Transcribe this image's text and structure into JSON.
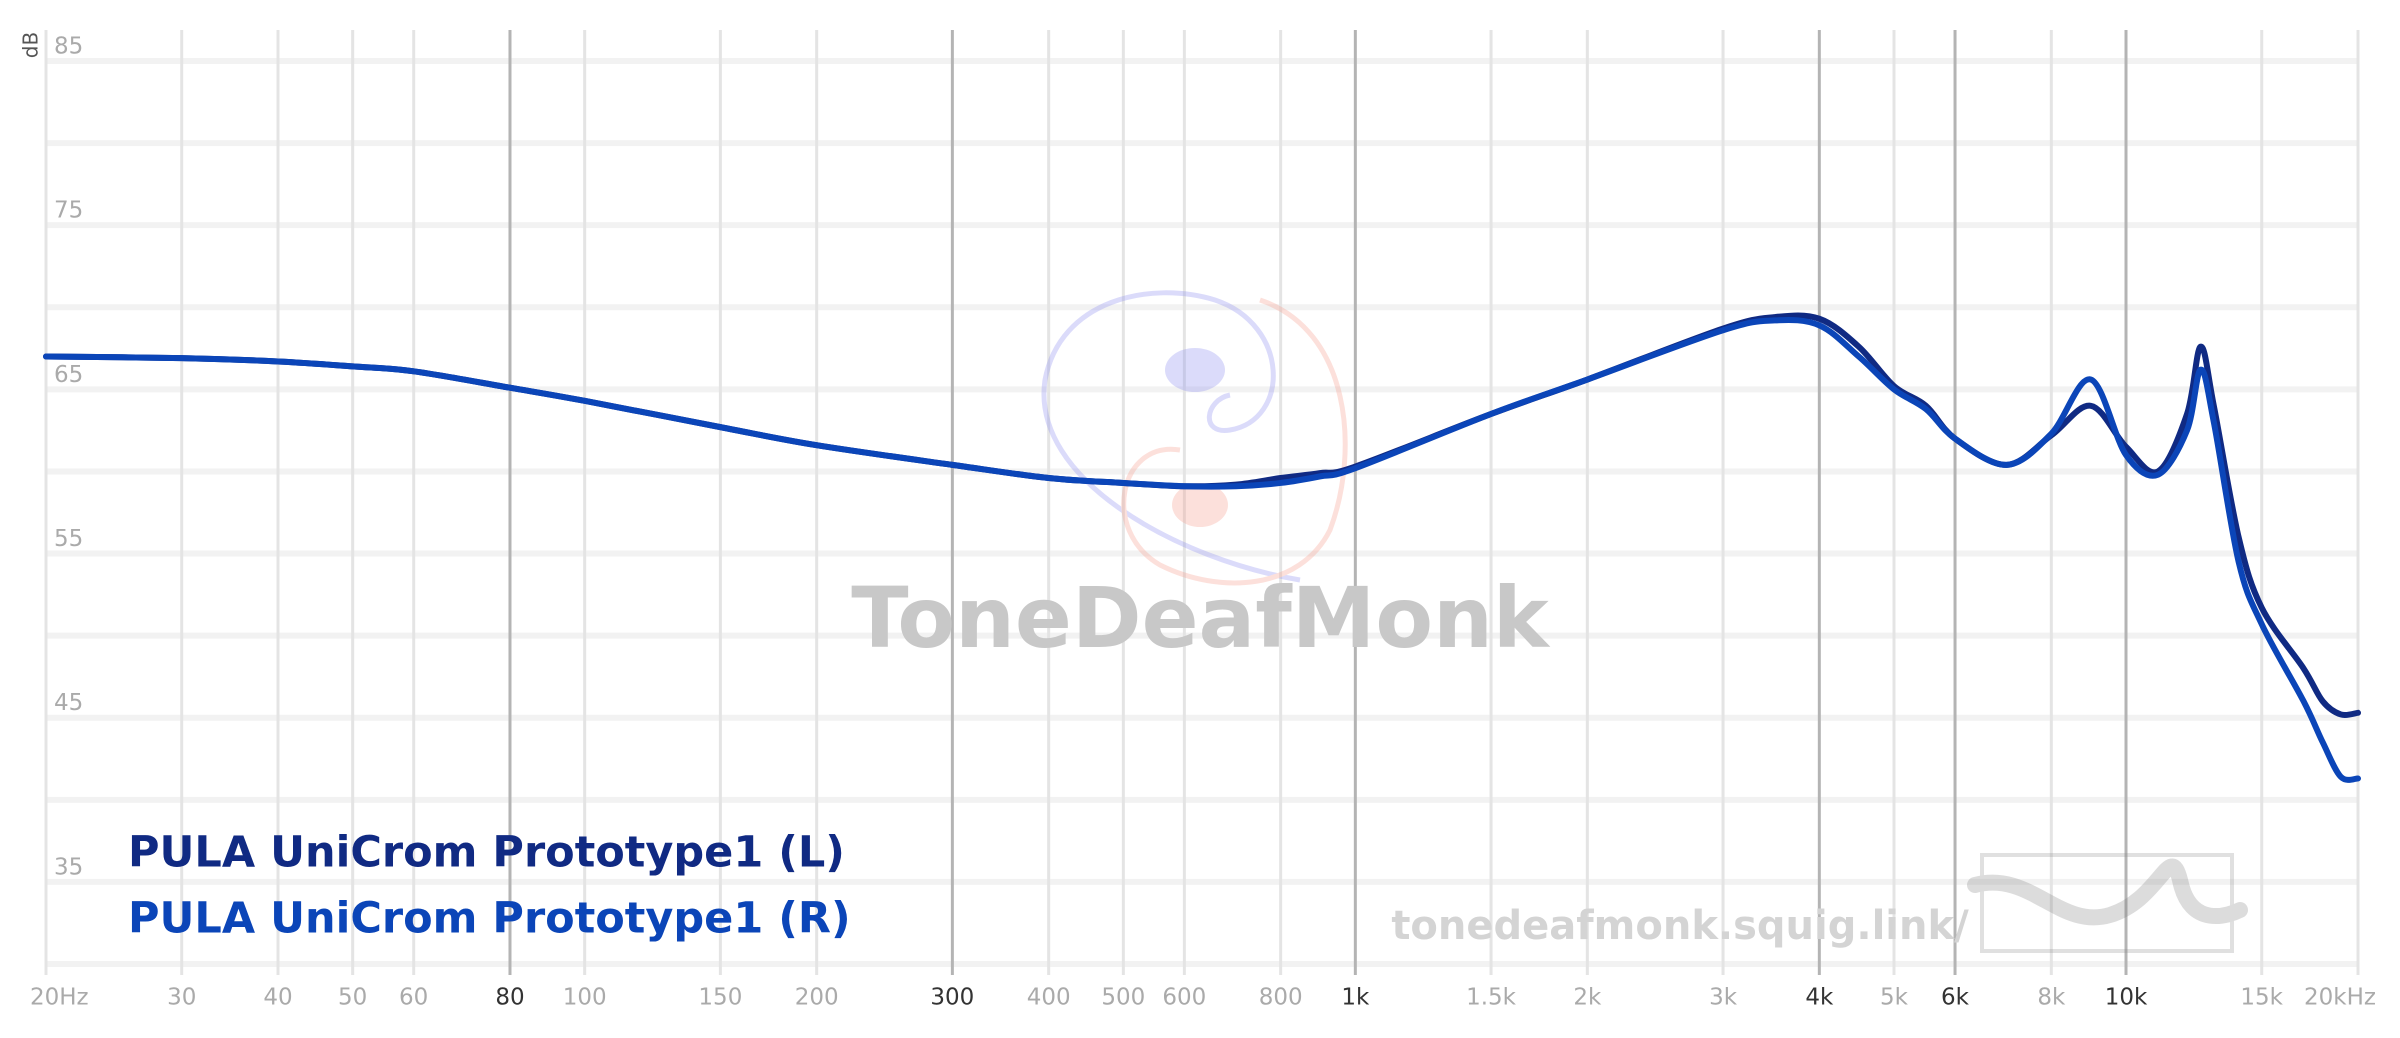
{
  "chart_data": {
    "type": "line",
    "ylabel": "dB",
    "watermark": "ToneDeafMonk",
    "url": "tonedeafmonk.squig.link/",
    "log_x": true,
    "grid": true,
    "legend": "bottom-left",
    "xlim": [
      20,
      20000
    ],
    "ylim": [
      30,
      85
    ],
    "yticks": [
      35,
      45,
      55,
      65,
      75,
      85
    ],
    "ygrid": [
      30,
      40,
      50,
      60,
      70,
      80
    ],
    "xticks": [
      {
        "value": 20,
        "label": "20Hz"
      },
      30,
      40,
      50,
      60,
      80,
      100,
      150,
      200,
      300,
      400,
      500,
      600,
      800,
      {
        "value": 1000,
        "label": "1k"
      },
      {
        "value": 1500,
        "label": "1.5k"
      },
      {
        "value": 2000,
        "label": "2k"
      },
      {
        "value": 3000,
        "label": "3k"
      },
      {
        "value": 4000,
        "label": "4k"
      },
      {
        "value": 5000,
        "label": "5k"
      },
      {
        "value": 6000,
        "label": "6k"
      },
      {
        "value": 8000,
        "label": "8k"
      },
      {
        "value": 10000,
        "label": "10k"
      },
      {
        "value": 15000,
        "label": "15k"
      },
      {
        "value": 20000,
        "label": "20kHz"
      }
    ],
    "xticks_major": [
      80,
      300,
      1000,
      4000,
      6000,
      10000
    ],
    "x": [
      20,
      30,
      40,
      50,
      60,
      80,
      100,
      150,
      200,
      300,
      400,
      500,
      600,
      700,
      800,
      900,
      1000,
      1500,
      2000,
      3000,
      3500,
      4000,
      4500,
      5000,
      5500,
      6000,
      7000,
      8000,
      9000,
      10000,
      11000,
      12000,
      12500,
      13000,
      14000,
      15000,
      17000,
      18000,
      19000,
      20000
    ],
    "series": [
      {
        "name": "PULA UniCrom Prototype1 (L)",
        "color": "#102a83",
        "values": [
          67.0,
          66.9,
          66.7,
          66.4,
          66.1,
          65.1,
          64.3,
          62.7,
          61.6,
          60.4,
          59.6,
          59.3,
          59.1,
          59.2,
          59.6,
          59.9,
          60.3,
          63.5,
          65.6,
          68.7,
          69.4,
          69.3,
          67.6,
          65.2,
          64.0,
          62.0,
          60.4,
          62.2,
          64.0,
          61.5,
          60.0,
          63.5,
          67.6,
          64.0,
          56.0,
          51.7,
          48.0,
          46.0,
          45.2,
          45.3
        ]
      },
      {
        "name": "PULA UniCrom Prototype1 (R)",
        "color": "#0b45b8",
        "values": [
          67.0,
          66.9,
          66.7,
          66.4,
          66.1,
          65.1,
          64.3,
          62.7,
          61.6,
          60.4,
          59.6,
          59.3,
          59.1,
          59.1,
          59.3,
          59.7,
          60.2,
          63.5,
          65.6,
          68.6,
          69.2,
          68.9,
          67.0,
          65.0,
          63.8,
          62.0,
          60.4,
          62.3,
          65.6,
          61.0,
          59.8,
          62.5,
          66.2,
          63.0,
          54.5,
          50.7,
          46.0,
          43.5,
          41.4,
          41.3
        ]
      }
    ]
  }
}
